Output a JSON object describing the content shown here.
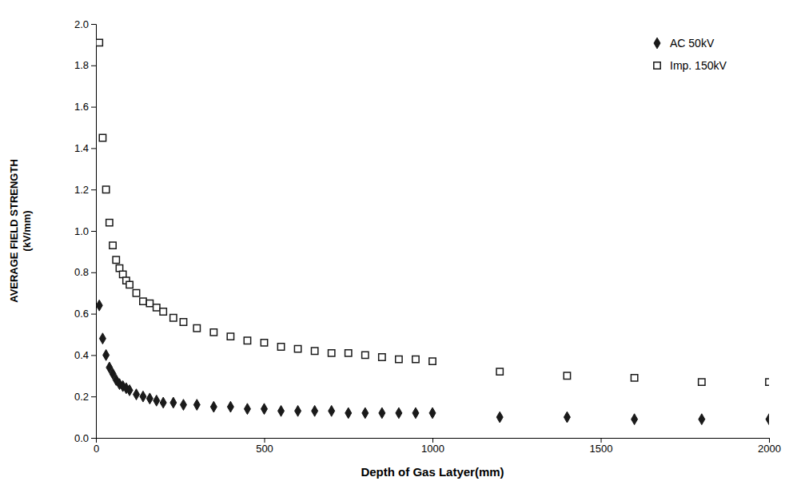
{
  "chart_data": {
    "type": "scatter",
    "xlabel": "Depth of Gas Latyer(mm)",
    "ylabel": "AVERAGE FIELD STRENGTH\n(kV/mm)",
    "xlim": [
      0,
      2000
    ],
    "ylim": [
      0.0,
      2.0
    ],
    "xticks": [
      0,
      500,
      1000,
      1500,
      2000
    ],
    "yticks": [
      {
        "value": 0.0,
        "label": "0.0"
      },
      0.2,
      0.4,
      0.6,
      0.8,
      {
        "value": 1.0,
        "label": "1.0"
      },
      1.2,
      1.4,
      1.6,
      1.8,
      {
        "value": 2.0,
        "label": "2.0"
      }
    ],
    "x": [
      10,
      20,
      30,
      40,
      50,
      60,
      70,
      80,
      90,
      100,
      120,
      140,
      160,
      180,
      200,
      230,
      260,
      300,
      350,
      400,
      450,
      500,
      550,
      600,
      650,
      700,
      750,
      800,
      850,
      900,
      950,
      1000,
      1200,
      1400,
      1600,
      1800,
      2000
    ],
    "series": [
      {
        "name": "AC 50kV",
        "color": "#1a1a1a",
        "marker": "diamond",
        "values": [
          0.64,
          0.48,
          0.4,
          0.34,
          0.31,
          0.28,
          0.26,
          0.25,
          0.24,
          0.23,
          0.21,
          0.2,
          0.19,
          0.18,
          0.17,
          0.17,
          0.16,
          0.16,
          0.15,
          0.15,
          0.14,
          0.14,
          0.13,
          0.13,
          0.13,
          0.13,
          0.12,
          0.12,
          0.12,
          0.12,
          0.12,
          0.12,
          0.1,
          0.1,
          0.09,
          0.09,
          0.09
        ]
      },
      {
        "name": "Imp. 150kV",
        "color": "#1a1a1a",
        "marker": "square",
        "values": [
          1.91,
          1.45,
          1.2,
          1.04,
          0.93,
          0.86,
          0.82,
          0.79,
          0.76,
          0.74,
          0.7,
          0.66,
          0.65,
          0.63,
          0.61,
          0.58,
          0.56,
          0.53,
          0.51,
          0.49,
          0.47,
          0.46,
          0.44,
          0.43,
          0.42,
          0.41,
          0.41,
          0.4,
          0.39,
          0.38,
          0.38,
          0.37,
          0.32,
          0.3,
          0.29,
          0.27,
          0.27
        ]
      }
    ],
    "grid": false,
    "legend": "upper right"
  }
}
